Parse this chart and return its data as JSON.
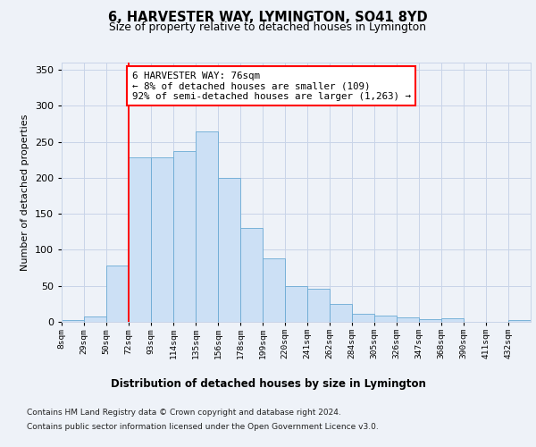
{
  "title": "6, HARVESTER WAY, LYMINGTON, SO41 8YD",
  "subtitle": "Size of property relative to detached houses in Lymington",
  "xlabel": "Distribution of detached houses by size in Lymington",
  "ylabel": "Number of detached properties",
  "bar_color": "#cce0f5",
  "bar_edge_color": "#6aaad4",
  "bar_values": [
    2,
    8,
    78,
    228,
    228,
    237,
    265,
    200,
    130,
    88,
    50,
    46,
    25,
    11,
    9,
    6,
    4,
    5,
    0,
    0,
    3
  ],
  "bar_labels": [
    "8sqm",
    "29sqm",
    "50sqm",
    "72sqm",
    "93sqm",
    "114sqm",
    "135sqm",
    "156sqm",
    "178sqm",
    "199sqm",
    "220sqm",
    "241sqm",
    "262sqm",
    "284sqm",
    "305sqm",
    "326sqm",
    "347sqm",
    "368sqm",
    "390sqm",
    "411sqm",
    "432sqm"
  ],
  "ylim": [
    0,
    360
  ],
  "yticks": [
    0,
    50,
    100,
    150,
    200,
    250,
    300,
    350
  ],
  "annotation_text": "6 HARVESTER WAY: 76sqm\n← 8% of detached houses are smaller (109)\n92% of semi-detached houses are larger (1,263) →",
  "vline_x": 3.0,
  "footer_line1": "Contains HM Land Registry data © Crown copyright and database right 2024.",
  "footer_line2": "Contains public sector information licensed under the Open Government Licence v3.0.",
  "background_color": "#eef2f8",
  "plot_bg_color": "#eef2f8",
  "grid_color": "#c8d4e8"
}
